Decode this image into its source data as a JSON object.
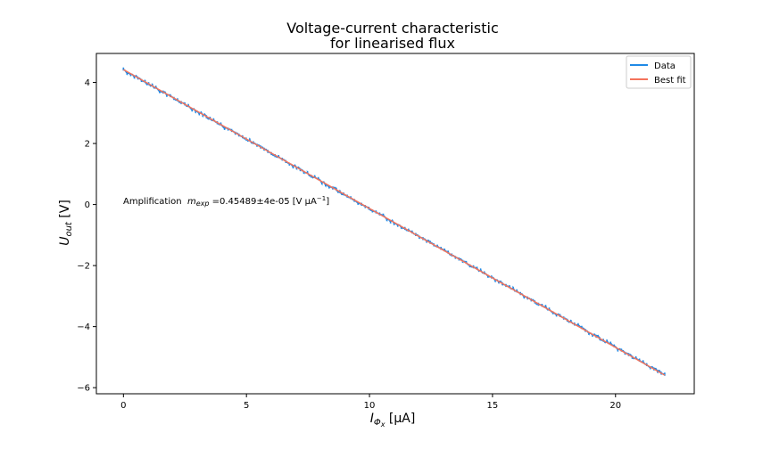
{
  "chart_data": {
    "type": "line",
    "title_line1": "Voltage-current characteristic",
    "title_line2": "for linearised flux",
    "xlabel_main": "I",
    "xlabel_sub": "Φ",
    "xlabel_subsub": "x",
    "xlabel_unit": " [μA]",
    "ylabel_main": "U",
    "ylabel_sub": "out",
    "ylabel_unit": " [V]",
    "xlim": [
      -1.1,
      23.2
    ],
    "ylim": [
      -6.2,
      4.95
    ],
    "xticks": [
      0,
      5,
      10,
      15,
      20
    ],
    "yticks": [
      -6,
      -4,
      -2,
      0,
      2,
      4
    ],
    "grid": false,
    "legend_position": "top-right",
    "annotation": {
      "prefix": "Amplification  ",
      "symbol": "m",
      "symbol_sub": "exp",
      "value_text": " =0.45489±4e-05 [V μA",
      "exponent": "−1",
      "suffix": "]",
      "x": 0.0,
      "y": 0.05
    },
    "series": [
      {
        "name": "Data",
        "color": "#1f8ae6",
        "style": "step",
        "x_start": 0.0,
        "x_end": 22.0,
        "y_start": 4.41,
        "y_end": -5.58
      },
      {
        "name": "Best fit",
        "color": "#f4735b",
        "style": "line",
        "x": [
          0.0,
          22.0
        ],
        "y": [
          4.42,
          -5.59
        ]
      }
    ]
  }
}
